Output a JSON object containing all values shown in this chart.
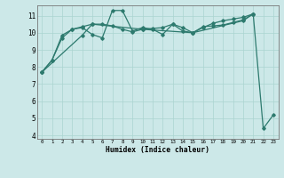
{
  "xlabel": "Humidex (Indice chaleur)",
  "bg_color": "#cce8e8",
  "grid_color": "#aad4d0",
  "line_color": "#2d7a6e",
  "xlim": [
    -0.5,
    23.5
  ],
  "ylim": [
    3.8,
    11.6
  ],
  "xticks": [
    0,
    1,
    2,
    3,
    4,
    5,
    6,
    7,
    8,
    9,
    10,
    11,
    12,
    13,
    14,
    15,
    16,
    17,
    18,
    19,
    20,
    21,
    22,
    23
  ],
  "yticks": [
    4,
    5,
    6,
    7,
    8,
    9,
    10,
    11
  ],
  "line1_x": [
    0,
    1,
    2,
    3,
    4,
    5,
    6,
    7,
    8,
    9,
    10,
    11,
    12,
    13,
    14,
    15,
    16,
    17,
    18,
    19,
    20,
    21
  ],
  "line1_y": [
    7.7,
    8.4,
    9.7,
    10.2,
    10.3,
    9.9,
    9.7,
    11.3,
    11.3,
    10.1,
    10.3,
    10.2,
    9.9,
    10.5,
    10.1,
    10.0,
    10.35,
    10.4,
    10.45,
    10.6,
    10.75,
    11.1
  ],
  "line2_x": [
    0,
    1,
    2,
    3,
    4,
    5,
    6,
    7,
    8,
    9,
    10,
    11,
    12,
    13,
    14,
    15,
    16,
    17,
    18,
    19,
    20,
    21
  ],
  "line2_y": [
    7.7,
    8.4,
    9.85,
    10.2,
    10.35,
    10.5,
    10.5,
    10.4,
    10.2,
    10.05,
    10.2,
    10.25,
    10.3,
    10.5,
    10.3,
    10.0,
    10.3,
    10.55,
    10.7,
    10.8,
    10.9,
    11.1
  ],
  "line3_x": [
    0,
    4,
    5,
    10,
    15,
    20,
    21,
    22,
    23
  ],
  "line3_y": [
    7.7,
    9.85,
    10.5,
    10.2,
    10.0,
    10.7,
    11.1,
    4.4,
    5.2
  ]
}
